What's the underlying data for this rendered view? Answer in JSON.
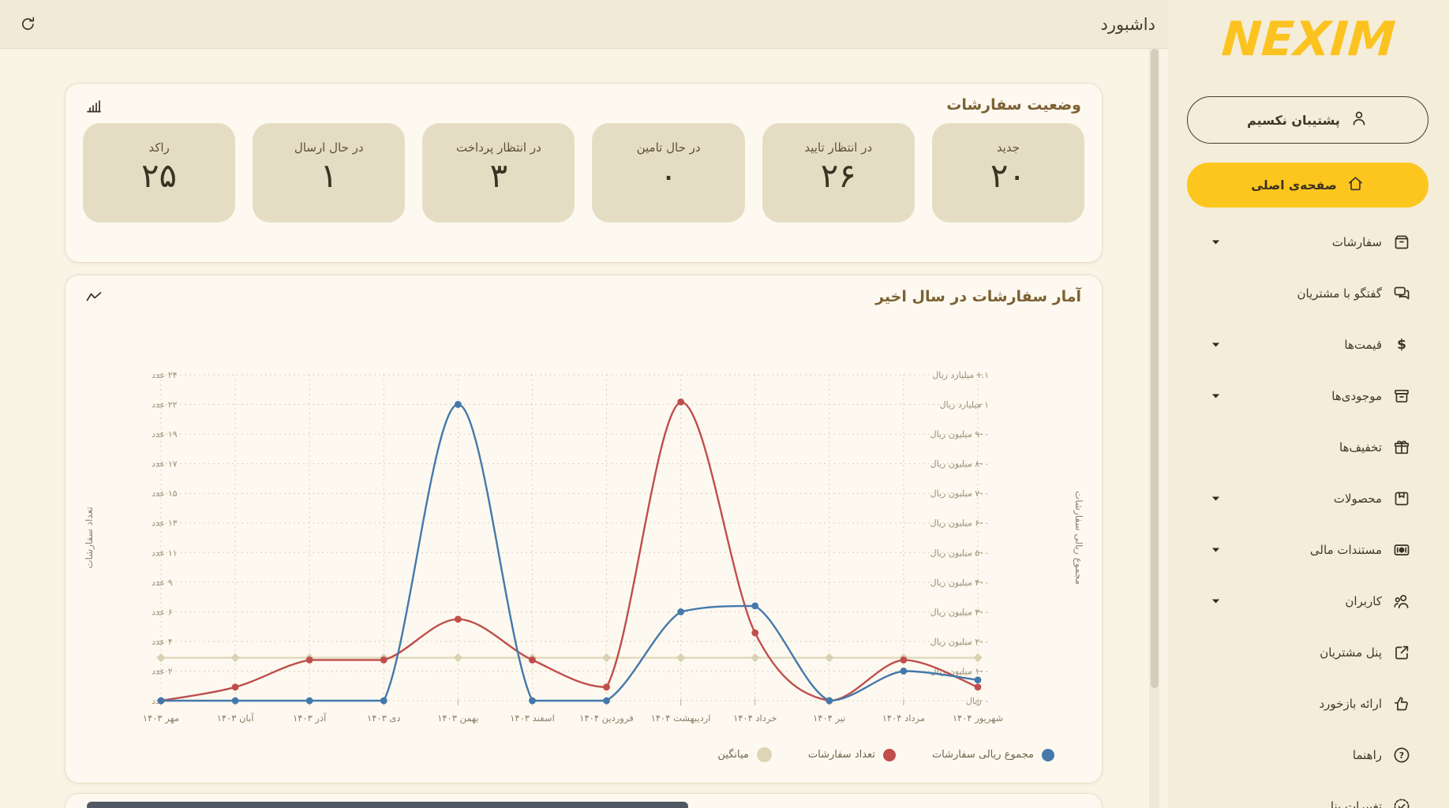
{
  "header": {
    "title": "داشبورد"
  },
  "sidebar": {
    "logo": "NEXIM",
    "support_button": {
      "label": "پشتیبان نکسیم",
      "icon": "person-icon"
    },
    "active_item": {
      "label": "صفحه‌ی اصلی",
      "icon": "home-icon"
    },
    "items": [
      {
        "label": "سفارشات",
        "icon": "package-icon",
        "expandable": true
      },
      {
        "label": "گفتگو با مشتریان",
        "icon": "chat-icon",
        "expandable": false
      },
      {
        "label": "قیمت‌ها",
        "icon": "dollar-icon",
        "expandable": true
      },
      {
        "label": "موجودی‌ها",
        "icon": "inventory-icon",
        "expandable": true
      },
      {
        "label": "تخفیف‌ها",
        "icon": "gift-icon",
        "expandable": false
      },
      {
        "label": "محصولات",
        "icon": "products-icon",
        "expandable": true
      },
      {
        "label": "مستندات مالی",
        "icon": "financial-doc-icon",
        "expandable": true
      },
      {
        "label": "کاربران",
        "icon": "users-icon",
        "expandable": true
      },
      {
        "label": "پنل مشتریان",
        "icon": "external-link-icon",
        "expandable": false
      },
      {
        "label": "ارائه بازخورد",
        "icon": "thumbs-up-icon",
        "expandable": false
      },
      {
        "label": "راهنما",
        "icon": "help-icon",
        "expandable": false
      },
      {
        "label": "تغییرات پنل",
        "icon": "changelog-icon",
        "expandable": false
      }
    ]
  },
  "status_card": {
    "title": "وضعیت سفارشات",
    "icon": "bar-chart-icon",
    "tiles": [
      {
        "label": "جدید",
        "value": "۲۰"
      },
      {
        "label": "در انتظار تایید",
        "value": "۲۶"
      },
      {
        "label": "در حال تامین",
        "value": "۰"
      },
      {
        "label": "در انتظار پرداخت",
        "value": "۳"
      },
      {
        "label": "در حال ارسال",
        "value": "۱"
      },
      {
        "label": "راکد",
        "value": "۲۵"
      }
    ]
  },
  "chart_card": {
    "title": "آمار سفارشات در سال اخیر",
    "icon": "line-chart-icon"
  },
  "chart_data": {
    "type": "line",
    "title": "آمار سفارشات در سال اخیر",
    "categories": [
      "مهر ۱۴۰۳",
      "آبان ۱۴۰۳",
      "آذر ۱۴۰۳",
      "دی ۱۴۰۳",
      "بهمن ۱۴۰۳",
      "اسفند ۱۴۰۳",
      "فروردین ۱۴۰۴",
      "اردیبهشت ۱۴۰۴",
      "خرداد ۱۴۰۴",
      "تیر ۱۴۰۴",
      "مرداد ۱۴۰۴",
      "شهریور ۱۴۰۴"
    ],
    "series": [
      {
        "name": "تعداد سفارشات",
        "axis": "left",
        "unit": "عدد",
        "color": "#bf4e4b",
        "values": [
          0,
          1,
          3,
          3,
          6,
          3,
          1,
          22,
          5,
          0,
          3,
          1
        ]
      },
      {
        "name": "مجموع ریالی سفارشات",
        "axis": "right",
        "unit": "میلیون ریال",
        "color": "#4478ab",
        "values": [
          0,
          0,
          0,
          0,
          1000,
          0,
          0,
          300,
          320,
          0,
          100,
          70
        ]
      },
      {
        "name": "میانگین",
        "axis": "right",
        "unit": "میلیون ریال",
        "color": "#ded7b9",
        "values": [
          145,
          145,
          145,
          145,
          145,
          145,
          145,
          145,
          145,
          145,
          145,
          145
        ]
      }
    ],
    "left_axis": {
      "label": "تعداد سفارشات",
      "range": [
        0,
        24
      ],
      "ticks": [
        "۰ عدد",
        "۲ عدد",
        "۴ عدد",
        "۶ عدد",
        "۹ عدد",
        "۱۱ عدد",
        "۱۳ عدد",
        "۱۵ عدد",
        "۱۷ عدد",
        "۱۹ عدد",
        "۲۲ عدد",
        "۲۴ عدد"
      ]
    },
    "right_axis": {
      "label": "مجموع ریالی سفارشات",
      "range_million": [
        0,
        1100
      ],
      "ticks": [
        "۰ ریال",
        "۱۰۰ میلیون ریال",
        "۲۰۰ میلیون ریال",
        "۳۰۰ میلیون ریال",
        "۴۰۰ میلیون ریال",
        "۵۰۰ میلیون ریال",
        "۶۰۰ میلیون ریال",
        "۷۰۰ میلیون ریال",
        "۸۰۰ میلیون ریال",
        "۹۰۰ میلیون ریال",
        "۱ میلیارد ریال",
        "۱.۱ میلیارد ریال"
      ]
    },
    "legend": [
      {
        "label": "مجموع ریالی سفارشات",
        "color": "#4478ab",
        "size": "normal"
      },
      {
        "label": "تعداد سفارشات",
        "color": "#bf4e4b",
        "size": "normal"
      },
      {
        "label": "میانگین",
        "color": "#ddd5b6",
        "size": "big"
      }
    ],
    "grid": true,
    "legend_position": "bottom-right"
  },
  "colors": {
    "accent_yellow": "#fcc61e",
    "series_red": "#bf4e4b",
    "series_blue": "#4478ab",
    "series_average": "#ded7b9",
    "header_bg": "#f1ead8",
    "sidebar_bg": "#f4edda",
    "card_bg": "#fdf9f0",
    "tile_bg": "#e5ddc3"
  }
}
